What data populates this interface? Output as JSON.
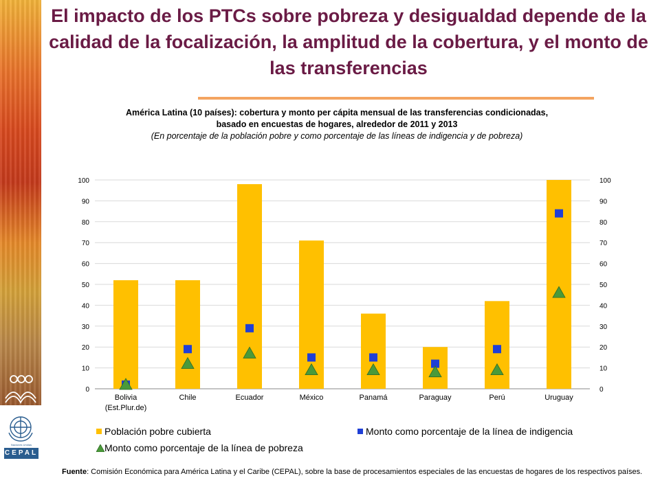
{
  "header": {
    "title": "El impacto de los PTCs sobre pobreza y desigualdad depende de la calidad de la focalización, la amplitud de la cobertura, y el monto de las transferencias",
    "subtitle_line1": "América Latina (10 países): cobertura y monto per cápita mensual de las transferencias condicionadas,",
    "subtitle_line2": "basado en encuestas de hogares, alrededor de 2011 y 2013",
    "subtitle_line3": "(En porcentaje de la población pobre y como porcentaje de las líneas de indigencia y de pobreza)"
  },
  "colors": {
    "title": "#6a1b45",
    "bar": "#ffc000",
    "square": "#1f3fd6",
    "triangle": "#4a9a3a",
    "rule": "#f4a460"
  },
  "chart_data": {
    "type": "bar",
    "categories": [
      "Bolivia (Est.Plur.de)",
      "Chile",
      "Ecuador",
      "México",
      "Panamá",
      "Paraguay",
      "Perú",
      "Uruguay"
    ],
    "series": [
      {
        "name": "Población pobre cubierta",
        "kind": "bar",
        "values": [
          52,
          52,
          98,
          71,
          36,
          20,
          42,
          100
        ]
      },
      {
        "name": "Monto como porcentaje de la línea de indigencia",
        "kind": "square-marker",
        "values": [
          2,
          19,
          29,
          15,
          15,
          12,
          19,
          84
        ]
      },
      {
        "name": "Monto como porcentaje de la línea de pobreza",
        "kind": "triangle-marker",
        "values": [
          2,
          12,
          17,
          9,
          9,
          8,
          9,
          46
        ]
      }
    ],
    "ylim": [
      0,
      100
    ],
    "yticks": [
      "0",
      "10",
      "20",
      "30",
      "40",
      "50",
      "60",
      "70",
      "80",
      "90",
      "100"
    ],
    "secondary_axis": true,
    "legend_position": "bottom"
  },
  "source": {
    "label": "Fuente",
    "text": ": Comisión Económica para América Latina y el Caribe (CEPAL), sobre la base de procesamientos especiales de las encuestas de hogares de los respectivos países."
  },
  "logos": {
    "un_label": "Naciones Unidas",
    "cepal_label": "CEPAL"
  }
}
